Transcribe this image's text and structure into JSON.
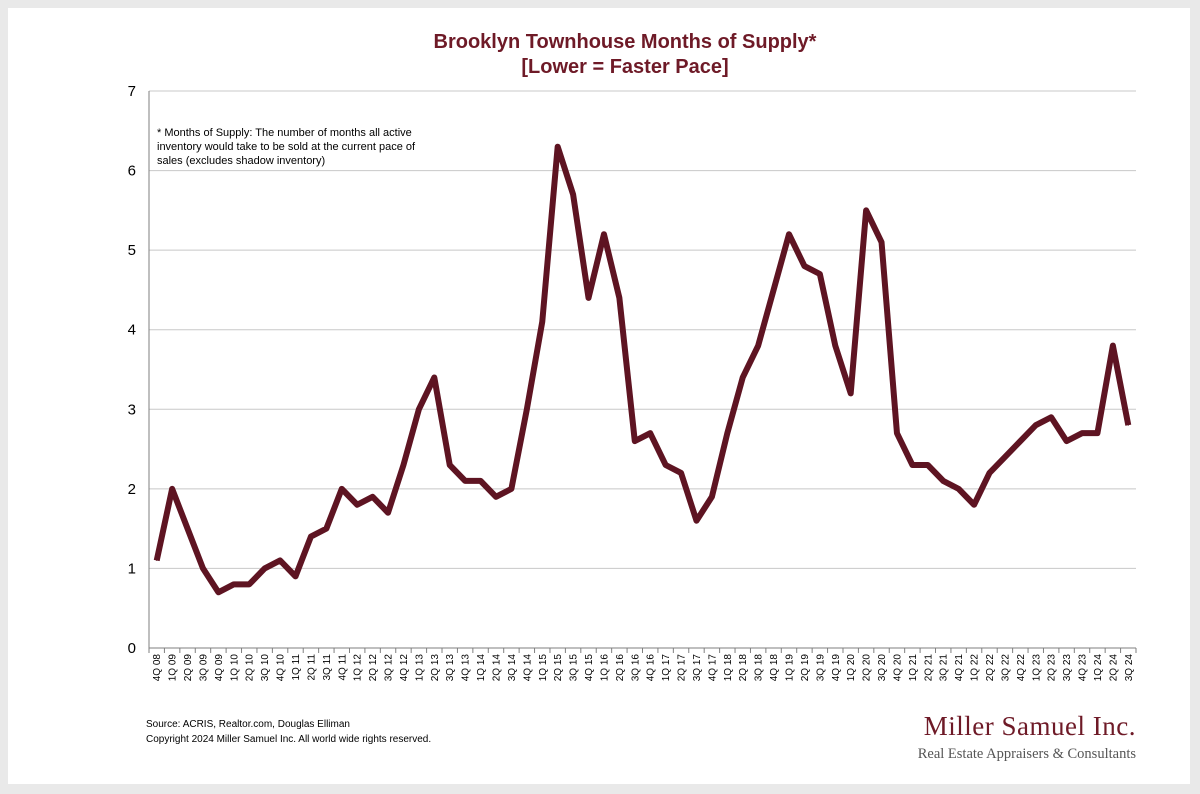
{
  "chart_data": {
    "type": "line",
    "title": "Brooklyn Townhouse Months of Supply*",
    "subtitle": "[Lower = Faster Pace]",
    "xlabel": "",
    "ylabel": "",
    "ylim": [
      0,
      7
    ],
    "yticks": [
      "0",
      "1",
      "2",
      "3",
      "4",
      "5",
      "6",
      "7"
    ],
    "grid": true,
    "annotation": [
      "* Months of Supply: The number of months all active",
      "inventory would take to be sold at the current pace of",
      "sales (excludes shadow inventory)"
    ],
    "series_color": "#5e1422",
    "categories": [
      "4Q 08",
      "1Q 09",
      "2Q 09",
      "3Q 09",
      "4Q 09",
      "1Q 10",
      "2Q 10",
      "3Q 10",
      "4Q 10",
      "1Q 11",
      "2Q 11",
      "3Q 11",
      "4Q 11",
      "1Q 12",
      "2Q 12",
      "3Q 12",
      "4Q 12",
      "1Q 13",
      "2Q 13",
      "3Q 13",
      "4Q 13",
      "1Q 14",
      "2Q 14",
      "3Q 14",
      "4Q 14",
      "1Q 15",
      "2Q 15",
      "3Q 15",
      "4Q 15",
      "1Q 16",
      "2Q 16",
      "3Q 16",
      "4Q 16",
      "1Q 17",
      "2Q 17",
      "3Q 17",
      "4Q 17",
      "1Q 18",
      "2Q 18",
      "3Q 18",
      "4Q 18",
      "1Q 19",
      "2Q 19",
      "3Q 19",
      "4Q 19",
      "1Q 20",
      "2Q 20",
      "3Q 20",
      "4Q 20",
      "1Q 21",
      "2Q 21",
      "3Q 21",
      "4Q 21",
      "1Q 22",
      "2Q 22",
      "3Q 22",
      "4Q 22",
      "1Q 23",
      "2Q 23",
      "3Q 23",
      "4Q 23",
      "1Q 24",
      "2Q 24",
      "3Q 24"
    ],
    "series": [
      {
        "name": "Months of Supply",
        "values": [
          1.1,
          2.0,
          1.5,
          1.0,
          0.7,
          0.8,
          0.8,
          1.0,
          1.1,
          0.9,
          1.4,
          1.5,
          2.0,
          1.8,
          1.9,
          1.7,
          2.3,
          3.0,
          3.4,
          2.3,
          2.1,
          2.1,
          1.9,
          2.0,
          3.0,
          4.1,
          6.3,
          5.7,
          4.4,
          5.2,
          4.4,
          2.6,
          2.7,
          2.3,
          2.2,
          1.6,
          1.9,
          2.7,
          3.4,
          3.8,
          4.5,
          5.2,
          4.8,
          4.7,
          3.8,
          3.2,
          5.5,
          5.1,
          2.7,
          2.3,
          2.3,
          2.1,
          2.0,
          1.8,
          2.2,
          2.4,
          2.6,
          2.8,
          2.9,
          2.6,
          2.7,
          2.7,
          3.8,
          2.8
        ]
      }
    ]
  },
  "footer": {
    "source": "Source: ACRIS, Realtor.com, Douglas Elliman",
    "copyright": "Copyright 2024 Miller Samuel Inc.  All world wide rights reserved."
  },
  "logo": {
    "name": "Miller Samuel Inc.",
    "tagline": "Real Estate Appraisers & Consultants"
  }
}
